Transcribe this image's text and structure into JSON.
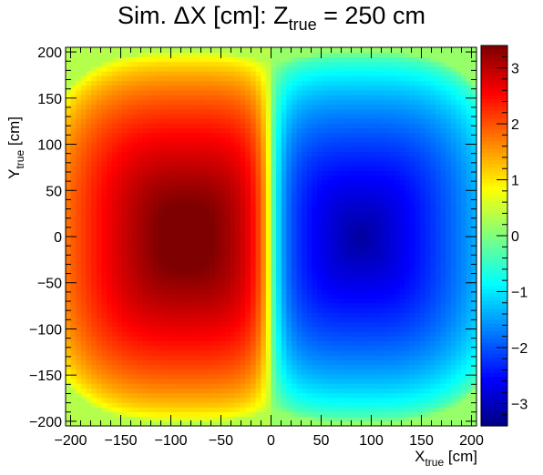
{
  "chart_data": {
    "type": "heatmap",
    "title": {
      "main": "Sim. ΔX [cm]:  Z",
      "subscript": "true",
      "suffix": " = 250 cm"
    },
    "xlabel": {
      "main": "X",
      "subscript": "true",
      "suffix": " [cm]"
    },
    "ylabel": {
      "main": "Y",
      "subscript": "true",
      "suffix": " [cm]"
    },
    "xlim": [
      -205,
      205
    ],
    "ylim": [
      -205,
      205
    ],
    "x_ticks": [
      -200,
      -150,
      -100,
      -50,
      0,
      50,
      100,
      150,
      200
    ],
    "x_tick_labels": [
      "−200",
      "−150",
      "−100",
      "−50",
      "0",
      "50",
      "100",
      "150",
      "200"
    ],
    "y_ticks": [
      -200,
      -150,
      -100,
      -50,
      0,
      50,
      100,
      150,
      200
    ],
    "y_tick_labels": [
      "−200",
      "−150",
      "−100",
      "−50",
      "0",
      "50",
      "100",
      "150",
      "200"
    ],
    "colorbar": {
      "zlim": [
        -3.4,
        3.4
      ],
      "ticks": [
        -3,
        -2,
        -1,
        0,
        1,
        2,
        3
      ],
      "tick_labels": [
        "−3",
        "−2",
        "−1",
        "0",
        "1",
        "2",
        "3"
      ]
    },
    "field": {
      "peak_value": 3.4,
      "peak_x": -85,
      "trough_value": -3.35,
      "trough_x": 90,
      "symmetry": "antisymmetric in X, symmetric in Y",
      "grid_bins": 80
    },
    "grid": false,
    "colors": {
      "palette": [
        "#00007f",
        "#0000ff",
        "#007fff",
        "#00ffff",
        "#7fff7f",
        "#ffff00",
        "#ff7f00",
        "#ff0000",
        "#7f0000"
      ]
    }
  }
}
